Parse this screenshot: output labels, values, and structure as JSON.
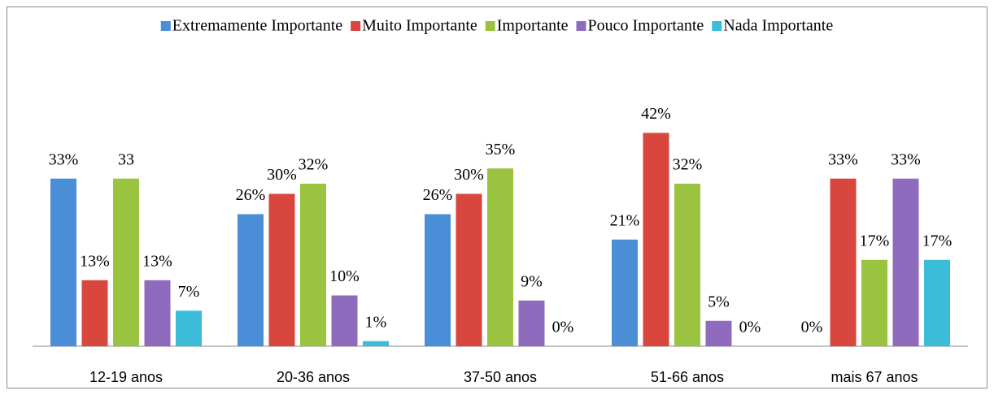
{
  "chart_data": {
    "type": "bar",
    "categories": [
      "12-19 anos",
      "20-36 anos",
      "37-50 anos",
      "51-66 anos",
      "mais 67 anos"
    ],
    "series": [
      {
        "name": "Extremamente Importante",
        "color": "#4a8ed8",
        "values": [
          33,
          26,
          26,
          21,
          0
        ],
        "value_labels": [
          "33%",
          "26%",
          "26%",
          "21%",
          "0%"
        ]
      },
      {
        "name": "Muito Importante",
        "color": "#d8463d",
        "values": [
          13,
          30,
          30,
          42,
          33
        ],
        "value_labels": [
          "13%",
          "30%",
          "30%",
          "42%",
          "33%"
        ]
      },
      {
        "name": "Importante",
        "color": "#9ac43f",
        "values": [
          33,
          32,
          35,
          32,
          17
        ],
        "value_labels": [
          "33",
          "32%",
          "35%",
          "32%",
          "17%"
        ]
      },
      {
        "name": "Pouco Importante",
        "color": "#8e6bbd",
        "values": [
          13,
          10,
          9,
          5,
          33
        ],
        "value_labels": [
          "13%",
          "10%",
          "9%",
          "5%",
          "33%"
        ]
      },
      {
        "name": "Nada Importante",
        "color": "#3bbcd8",
        "values": [
          7,
          1,
          0,
          0,
          17
        ],
        "value_labels": [
          "7%",
          "1%",
          "0%",
          "0%",
          "17%"
        ]
      }
    ],
    "ylim": [
      0,
      50
    ],
    "legend": "top"
  }
}
